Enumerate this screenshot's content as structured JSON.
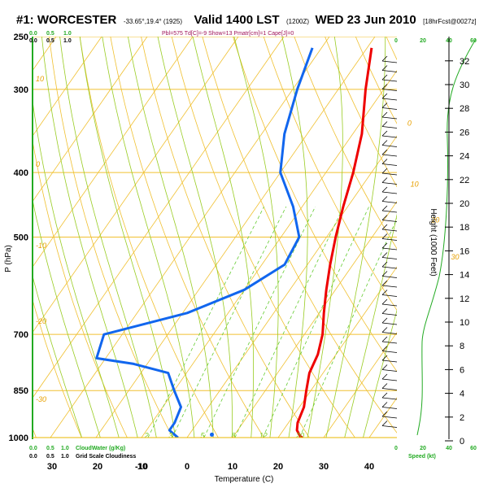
{
  "header": {
    "station": "#1: WORCESTER",
    "coords": "-33.65°,19.4° (1925)",
    "valid_label": "Valid 1400 LST",
    "utc": "(1200Z)",
    "date": "WED 23 Jun 2010",
    "forecast": "[18hrFcst@0027z]",
    "indices": "Pbl=575 Td[C]=-9 Show=13 Pmatr[cm]=1 Cape[J]=0"
  },
  "colors": {
    "temperature": "#ee0000",
    "dewpoint": "#1166ee",
    "isobar": "#f0c030",
    "dry_adiabat": "#f0c030",
    "moist_adiabat": "#99cc22",
    "mixing_ratio": "#66cc33",
    "wind_speed": "#22aa22"
  },
  "chart_data": {
    "type": "line",
    "subtype": "skew-T log-P sounding",
    "xlabel": "Temperature (C)",
    "ylabel": "P (hPa)",
    "right_label": "Height (1000 Feet)",
    "pressure_ticks": [
      "250",
      "300",
      "400",
      "500",
      "700",
      "850",
      "1000"
    ],
    "pressure_tick_values": [
      250,
      300,
      400,
      500,
      700,
      850,
      1000
    ],
    "temperature_ticks": [
      "-10",
      "0",
      "10",
      "20",
      "30",
      "40"
    ],
    "temperature_tick_values": [
      -10,
      0,
      10,
      20,
      30,
      40
    ],
    "left_scale_ticks": [
      "30",
      "20",
      "10"
    ],
    "height_ticks": [
      "0",
      "2",
      "4",
      "6",
      "8",
      "10",
      "12",
      "14",
      "16",
      "18",
      "20",
      "22",
      "24",
      "26",
      "28",
      "30",
      "32"
    ],
    "cloud_scale": {
      "title": "Grid Scale Cloudiness",
      "ticks": [
        "0.0",
        "0.5",
        "1.0"
      ]
    },
    "cloudwater_scale": {
      "title": "CloudWater (g/Kg)",
      "ticks": [
        "0.0",
        "0.5",
        "1.0"
      ]
    },
    "wind_speed_scale": {
      "title": "Speed (kt)",
      "ticks": [
        "0",
        "20",
        "40",
        "60"
      ]
    },
    "isotherm_labels": [
      "0",
      "10",
      "20",
      "30"
    ],
    "dry_adiabat_labels": [
      "10",
      "0",
      "-10",
      "-20",
      "-30"
    ],
    "mixing_ratio_labels": [
      "2",
      "3",
      "5",
      "8",
      "12",
      "20"
    ],
    "series": [
      {
        "name": "Temperature",
        "points": [
          {
            "p": 1000,
            "t": 25
          },
          {
            "p": 975,
            "t": 23
          },
          {
            "p": 950,
            "t": 22
          },
          {
            "p": 900,
            "t": 21
          },
          {
            "p": 850,
            "t": 19
          },
          {
            "p": 800,
            "t": 17
          },
          {
            "p": 750,
            "t": 16
          },
          {
            "p": 700,
            "t": 14
          },
          {
            "p": 650,
            "t": 11
          },
          {
            "p": 600,
            "t": 8
          },
          {
            "p": 550,
            "t": 5
          },
          {
            "p": 500,
            "t": 2
          },
          {
            "p": 450,
            "t": -1
          },
          {
            "p": 400,
            "t": -4
          },
          {
            "p": 350,
            "t": -8
          },
          {
            "p": 300,
            "t": -14
          },
          {
            "p": 260,
            "t": -19
          }
        ]
      },
      {
        "name": "Dewpoint",
        "points": [
          {
            "p": 1000,
            "t": -2
          },
          {
            "p": 975,
            "t": -5
          },
          {
            "p": 950,
            "t": -5
          },
          {
            "p": 900,
            "t": -6
          },
          {
            "p": 850,
            "t": -10
          },
          {
            "p": 800,
            "t": -14
          },
          {
            "p": 775,
            "t": -23
          },
          {
            "p": 760,
            "t": -32
          },
          {
            "p": 700,
            "t": -34
          },
          {
            "p": 650,
            "t": -19
          },
          {
            "p": 600,
            "t": -10
          },
          {
            "p": 550,
            "t": -5
          },
          {
            "p": 500,
            "t": -6
          },
          {
            "p": 450,
            "t": -12
          },
          {
            "p": 400,
            "t": -20
          },
          {
            "p": 350,
            "t": -25
          },
          {
            "p": 300,
            "t": -29
          },
          {
            "p": 260,
            "t": -32
          }
        ]
      }
    ],
    "surface_dewpoint_marker": {
      "p": 990,
      "t": 5
    }
  }
}
